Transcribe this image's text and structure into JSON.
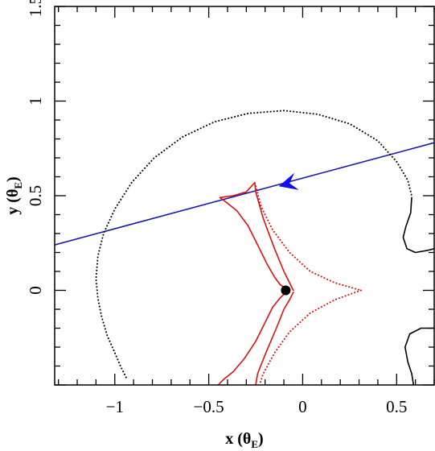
{
  "chart_data": {
    "type": "line",
    "title": "",
    "xlabel": {
      "main": "x (θ",
      "sub": "E",
      "close": ")"
    },
    "ylabel": {
      "main": "y (θ",
      "sub": "E",
      "close": ")"
    },
    "xlim": [
      -1.32,
      0.7
    ],
    "ylim": [
      -0.5,
      1.5
    ],
    "x_ticks": [
      {
        "value": -1,
        "label": "−1"
      },
      {
        "value": -0.5,
        "label": "−0.5"
      },
      {
        "value": 0,
        "label": "0"
      },
      {
        "value": 0.5,
        "label": "0.5"
      }
    ],
    "y_ticks": [
      {
        "value": 0,
        "label": "0"
      },
      {
        "value": 0.5,
        "label": "0.5"
      },
      {
        "value": 1,
        "label": "1"
      },
      {
        "value": 1.5,
        "label": "1.5"
      }
    ],
    "grid": false,
    "colors": {
      "critical_curve": "#000000",
      "caustic": "#dd1111",
      "source_trajectory": "#1a1aaa",
      "arrow": "#1010ee",
      "lens": "#000000"
    },
    "series": [
      {
        "role": "source-trajectory",
        "style": "line",
        "color": "#1a1aaa",
        "points": [
          [
            -1.32,
            0.24
          ],
          [
            0.7,
            0.78
          ]
        ]
      },
      {
        "role": "critical-curve-resonant",
        "style": "dotted",
        "color": "#000000",
        "points": [
          [
            -0.94,
            -0.46
          ],
          [
            -0.97,
            -0.4
          ],
          [
            -1.0,
            -0.33
          ],
          [
            -1.04,
            -0.24
          ],
          [
            -1.07,
            -0.14
          ],
          [
            -1.09,
            -0.04
          ],
          [
            -1.1,
            0.06
          ],
          [
            -1.09,
            0.18
          ],
          [
            -1.06,
            0.3
          ],
          [
            -1.0,
            0.43
          ],
          [
            -0.91,
            0.57
          ],
          [
            -0.79,
            0.7
          ],
          [
            -0.64,
            0.81
          ],
          [
            -0.47,
            0.89
          ],
          [
            -0.29,
            0.935
          ],
          [
            -0.1,
            0.95
          ],
          [
            0.08,
            0.93
          ],
          [
            0.25,
            0.88
          ],
          [
            0.4,
            0.79
          ],
          [
            0.5,
            0.68
          ],
          [
            0.56,
            0.58
          ],
          [
            0.58,
            0.5
          ]
        ]
      },
      {
        "role": "critical-curve-planetary-upper",
        "style": "line",
        "color": "#000000",
        "points": [
          [
            0.58,
            0.49
          ],
          [
            0.575,
            0.41
          ],
          [
            0.55,
            0.34
          ],
          [
            0.535,
            0.28
          ],
          [
            0.555,
            0.22
          ],
          [
            0.6,
            0.2
          ],
          [
            0.66,
            0.21
          ],
          [
            0.7,
            0.22
          ]
        ]
      },
      {
        "role": "critical-curve-planetary-lower",
        "style": "line",
        "color": "#000000",
        "points": [
          [
            0.7,
            -0.2
          ],
          [
            0.63,
            -0.2
          ],
          [
            0.57,
            -0.23
          ],
          [
            0.545,
            -0.3
          ],
          [
            0.56,
            -0.38
          ],
          [
            0.58,
            -0.44
          ],
          [
            0.59,
            -0.5
          ]
        ]
      },
      {
        "role": "caustic-upper-arm",
        "style": "line",
        "color": "#dd1111",
        "points": [
          [
            -0.44,
            0.49
          ],
          [
            -0.37,
            0.5
          ],
          [
            -0.3,
            0.52
          ],
          [
            -0.255,
            0.57
          ],
          [
            -0.25,
            0.52
          ],
          [
            -0.21,
            0.38
          ],
          [
            -0.15,
            0.22
          ],
          [
            -0.1,
            0.1
          ],
          [
            -0.07,
            0.04
          ],
          [
            -0.05,
            0.0
          ]
        ]
      },
      {
        "role": "caustic-lower-arm",
        "style": "line",
        "color": "#dd1111",
        "points": [
          [
            -0.05,
            -0.01
          ],
          [
            -0.07,
            -0.05
          ],
          [
            -0.1,
            -0.1
          ],
          [
            -0.14,
            -0.2
          ],
          [
            -0.2,
            -0.34
          ],
          [
            -0.24,
            -0.44
          ],
          [
            -0.25,
            -0.5
          ]
        ]
      },
      {
        "role": "caustic-left-edge",
        "style": "line",
        "color": "#dd1111",
        "points": [
          [
            -0.44,
            0.49
          ],
          [
            -0.4,
            0.46
          ],
          [
            -0.35,
            0.42
          ],
          [
            -0.29,
            0.34
          ],
          [
            -0.24,
            0.24
          ],
          [
            -0.19,
            0.14
          ],
          [
            -0.15,
            0.07
          ],
          [
            -0.12,
            0.03
          ],
          [
            -0.09,
            0.01
          ],
          [
            -0.08,
            0.0
          ],
          [
            -0.09,
            -0.01
          ],
          [
            -0.12,
            -0.04
          ],
          [
            -0.16,
            -0.09
          ],
          [
            -0.2,
            -0.17
          ],
          [
            -0.25,
            -0.27
          ],
          [
            -0.31,
            -0.36
          ],
          [
            -0.37,
            -0.43
          ],
          [
            -0.42,
            -0.47
          ],
          [
            -0.45,
            -0.5
          ]
        ]
      },
      {
        "role": "caustic-right-upper",
        "style": "dotted",
        "color": "#dd1111",
        "points": [
          [
            -0.25,
            0.55
          ],
          [
            -0.22,
            0.44
          ],
          [
            -0.16,
            0.32
          ],
          [
            -0.07,
            0.2
          ],
          [
            0.04,
            0.1
          ],
          [
            0.17,
            0.04
          ],
          [
            0.31,
            0.0
          ]
        ]
      },
      {
        "role": "caustic-right-lower",
        "style": "dotted",
        "color": "#dd1111",
        "points": [
          [
            0.31,
            0.0
          ],
          [
            0.17,
            -0.05
          ],
          [
            0.04,
            -0.12
          ],
          [
            -0.07,
            -0.22
          ],
          [
            -0.15,
            -0.33
          ],
          [
            -0.21,
            -0.44
          ],
          [
            -0.23,
            -0.5
          ]
        ]
      }
    ],
    "markers": {
      "lens": {
        "x": -0.09,
        "y": 0.0
      },
      "direction_arrow": {
        "x": -0.09,
        "y": 0.56,
        "heading": "left"
      }
    }
  }
}
